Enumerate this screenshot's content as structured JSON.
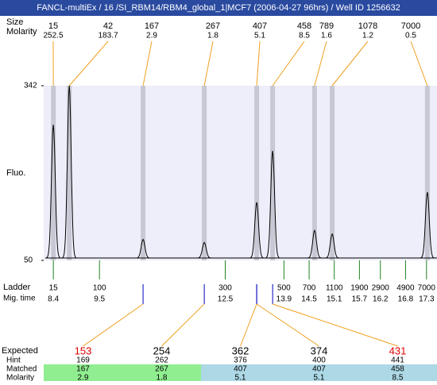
{
  "header": {
    "title": "FANCL-multiEx / 16 /SI_RBM14/RBM4_global_1|MCF7 (2006-04-27 96hrs) / Well ID 1256632",
    "size_label": "Size",
    "molarity_label": "Molarity"
  },
  "chart_data": {
    "type": "electropherogram",
    "ylabel": "Fluo.",
    "ylim": [
      50,
      342
    ],
    "yticks": [
      50,
      342
    ],
    "xlim": [
      8.17,
      17.55
    ],
    "plot_color": "#eeeefa",
    "band_color": "#c8c8d4",
    "peak_line_color": "#f0a020",
    "peaks": {
      "sizes": [
        15,
        42,
        167,
        267,
        407,
        458,
        789,
        1078,
        7000
      ],
      "molarity": [
        252.5,
        183.7,
        2.9,
        1.8,
        5.1,
        8.5,
        1.6,
        1.2,
        0.5
      ],
      "mig_time": [
        8.4,
        8.78,
        10.54,
        12.0,
        13.25,
        13.63,
        14.63,
        15.05,
        17.32
      ],
      "height": [
        277,
        342,
        85,
        80,
        147,
        233,
        100,
        94,
        164
      ]
    },
    "baseline": 54,
    "ladder": {
      "label": "Ladder",
      "time_label": "Mig. time",
      "color": "#208020",
      "sizes": [
        15,
        100,
        300,
        500,
        700,
        1100,
        1900,
        2900,
        4900,
        7000
      ],
      "mig_time": [
        8.4,
        9.5,
        12.5,
        13.9,
        14.5,
        15.1,
        15.7,
        16.2,
        16.8,
        17.3
      ]
    }
  },
  "table": {
    "row_labels": [
      "Expected",
      "Hint",
      "Matched",
      "Molarity"
    ],
    "expected": [
      153,
      254,
      362,
      374,
      431
    ],
    "expected_colors": [
      "#e00000",
      "#000000",
      "#000000",
      "#000000",
      "#e00000"
    ],
    "hint": [
      169,
      262,
      376,
      400,
      441
    ],
    "matched": [
      167,
      267,
      407,
      407,
      458
    ],
    "molarity": [
      2.9,
      1.8,
      5.1,
      5.1,
      8.5
    ],
    "match_colors": [
      "#90ee90",
      "#90ee90",
      "#add8e6",
      "#add8e6",
      "#add8e6"
    ],
    "match_peak": [
      2,
      3,
      4,
      4,
      5
    ]
  }
}
